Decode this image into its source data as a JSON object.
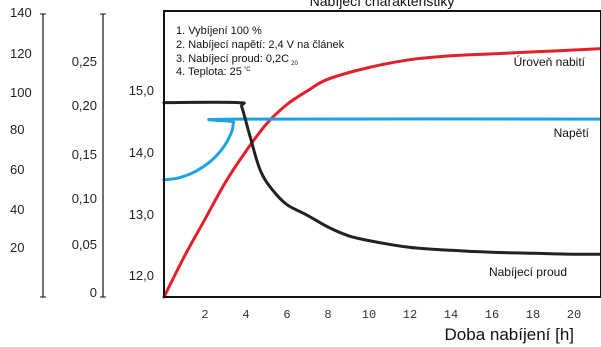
{
  "chart_data": {
    "type": "line",
    "title": "Nabíjecí charakteristiky",
    "xlabel": "Doba nabíjení [h]",
    "x_ticks": [
      "2",
      "4",
      "6",
      "8",
      "10",
      "12",
      "14",
      "16",
      "18",
      "20"
    ],
    "axes": {
      "left_outer": {
        "ticks": [
          "140",
          "120",
          "100",
          "80",
          "60",
          "40",
          "20"
        ]
      },
      "left_middle": {
        "ticks": [
          "0,25",
          "0,20",
          "0,15",
          "0,10",
          "0,05",
          "0"
        ]
      },
      "left_inner": {
        "ticks": [
          "15,0",
          "14,0",
          "13,0",
          "12,0"
        ]
      }
    },
    "notes": [
      {
        "text": "1. Vybíjení 100 %"
      },
      {
        "text": "2. Nabíjecí napětí: 2,4 V na článek"
      },
      {
        "text": "3. Nabíjecí proud: 0,2C",
        "sub": "20"
      },
      {
        "text": "4. Teplota: 25",
        "sup": "°C"
      }
    ],
    "series": [
      {
        "name": "Úroveň nabití",
        "color": "#e2202a",
        "axis": "left_outer",
        "x": [
          0,
          1,
          2,
          3,
          4,
          5,
          6,
          7,
          8,
          10,
          12,
          14,
          16,
          18,
          20,
          22
        ],
        "y": [
          0,
          21,
          40,
          59,
          75,
          89,
          99,
          106,
          112,
          118,
          122,
          124,
          125,
          126,
          127,
          128
        ]
      },
      {
        "name": "Napětí",
        "color": "#1aa3e0",
        "axis": "left_inner",
        "x": [
          0,
          0.7,
          1.5,
          2.3,
          2.9,
          3.3,
          3.4,
          3.6,
          22
        ],
        "y": [
          13.57,
          13.6,
          13.7,
          13.88,
          14.1,
          14.35,
          14.51,
          14.56,
          14.56
        ]
      },
      {
        "name": "Nabíjecí proud",
        "color": "#222222",
        "axis": "left_middle",
        "x": [
          0,
          3.6,
          3.8,
          4.2,
          4.7,
          5.3,
          6,
          7,
          8,
          9,
          10,
          12,
          14,
          16,
          18,
          20,
          22
        ],
        "y": [
          0.2,
          0.2,
          0.195,
          0.165,
          0.13,
          0.11,
          0.095,
          0.084,
          0.072,
          0.063,
          0.058,
          0.051,
          0.048,
          0.046,
          0.045,
          0.044,
          0.044
        ]
      }
    ]
  }
}
